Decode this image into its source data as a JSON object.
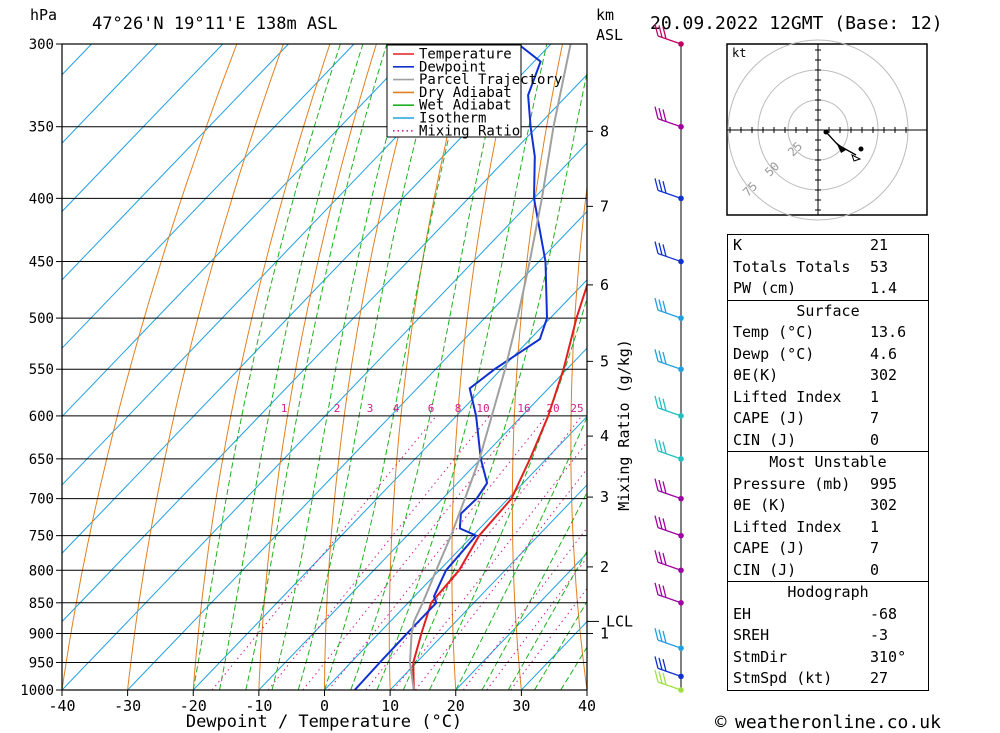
{
  "header": {
    "pressure_unit": "hPa",
    "location": "47°26'N  19°11'E  138m  ASL",
    "km_label": "km",
    "asl_label": "ASL",
    "datetime": "20.09.2022  12GMT  (Base: 12)"
  },
  "chart_data": {
    "type": "line",
    "title": "",
    "xlabel": "Dewpoint / Temperature (°C)",
    "ylabel": "hPa",
    "y2label": "Mixing Ratio (g/kg)",
    "xlim": [
      -40,
      40
    ],
    "ylim": [
      1000,
      300
    ],
    "x_ticks": [
      -40,
      -30,
      -20,
      -10,
      0,
      10,
      20,
      30,
      40
    ],
    "pressure_levels": [
      300,
      350,
      400,
      450,
      500,
      550,
      600,
      650,
      700,
      750,
      800,
      850,
      900,
      950,
      1000
    ],
    "height_km_labels": [
      {
        "p": 353,
        "km": "8"
      },
      {
        "p": 406,
        "km": "7"
      },
      {
        "p": 470,
        "km": "6"
      },
      {
        "p": 542,
        "km": "5"
      },
      {
        "p": 623,
        "km": "4"
      },
      {
        "p": 698,
        "km": "3"
      },
      {
        "p": 795,
        "km": "2"
      },
      {
        "p": 900,
        "km": "1"
      }
    ],
    "lcl": {
      "p": 880,
      "label": "LCL"
    },
    "mixing_ratio_labels": [
      "1",
      "2",
      "3",
      "4",
      "6",
      "8",
      "10",
      "16",
      "20",
      "25"
    ],
    "legend": {
      "placement": "top-center",
      "items": [
        {
          "name": "Temperature",
          "color": "#e02020",
          "style": "solid"
        },
        {
          "name": "Dewpoint",
          "color": "#1030d0",
          "style": "solid"
        },
        {
          "name": "Parcel Trajectory",
          "color": "#a0a0a0",
          "style": "solid"
        },
        {
          "name": "Dry Adiabat",
          "color": "#e08020",
          "style": "solid"
        },
        {
          "name": "Wet Adiabat",
          "color": "#20b020",
          "style": "solid"
        },
        {
          "name": "Isotherm",
          "color": "#20a0e0",
          "style": "solid"
        },
        {
          "name": "Mixing Ratio",
          "color": "#d02090",
          "style": "dotted"
        }
      ]
    },
    "series": [
      {
        "name": "Temperature",
        "points": [
          [
            1000,
            13.6
          ],
          [
            950,
            9.5
          ],
          [
            900,
            6.5
          ],
          [
            850,
            3.5
          ],
          [
            800,
            3.0
          ],
          [
            750,
            1.0
          ],
          [
            700,
            0.5
          ],
          [
            650,
            -2.5
          ],
          [
            600,
            -6.0
          ],
          [
            550,
            -10.5
          ],
          [
            500,
            -16.0
          ],
          [
            450,
            -21.5
          ],
          [
            400,
            -28.0
          ],
          [
            350,
            -35.5
          ],
          [
            320,
            -41.5
          ],
          [
            300,
            -43.5
          ]
        ]
      },
      {
        "name": "Dewpoint",
        "points": [
          [
            1000,
            4.6
          ],
          [
            950,
            4.4
          ],
          [
            900,
            4.3
          ],
          [
            850,
            4.3
          ],
          [
            840,
            3.0
          ],
          [
            800,
            1.0
          ],
          [
            750,
            0.5
          ],
          [
            740,
            -3.0
          ],
          [
            720,
            -5.0
          ],
          [
            700,
            -4.8
          ],
          [
            680,
            -5.5
          ],
          [
            650,
            -10.0
          ],
          [
            600,
            -17.0
          ],
          [
            570,
            -22.0
          ],
          [
            550,
            -21.0
          ],
          [
            520,
            -18.5
          ],
          [
            500,
            -20.5
          ],
          [
            450,
            -29.0
          ],
          [
            400,
            -40.0
          ],
          [
            370,
            -46.0
          ],
          [
            350,
            -51.0
          ],
          [
            330,
            -56.0
          ],
          [
            310,
            -59.0
          ],
          [
            300,
            -65.0
          ]
        ]
      },
      {
        "name": "Parcel Trajectory",
        "points": [
          [
            1000,
            13.6
          ],
          [
            950,
            9.0
          ],
          [
            900,
            5.0
          ],
          [
            880,
            3.6
          ],
          [
            850,
            2.2
          ],
          [
            800,
            -0.5
          ],
          [
            750,
            -3.3
          ],
          [
            700,
            -6.6
          ],
          [
            650,
            -10.2
          ],
          [
            600,
            -14.6
          ],
          [
            550,
            -19.4
          ],
          [
            500,
            -25.0
          ],
          [
            450,
            -31.4
          ],
          [
            400,
            -38.8
          ],
          [
            350,
            -47.5
          ],
          [
            300,
            -57.0
          ]
        ]
      }
    ]
  },
  "wind_profile": [
    {
      "p": 1000,
      "color": "#a0e040"
    },
    {
      "p": 975,
      "color": "#1030d0"
    },
    {
      "p": 925,
      "color": "#20a0e0"
    },
    {
      "p": 850,
      "color": "#a000a0"
    },
    {
      "p": 800,
      "color": "#a000a0"
    },
    {
      "p": 750,
      "color": "#a000a0"
    },
    {
      "p": 700,
      "color": "#a000a0"
    },
    {
      "p": 650,
      "color": "#20c0c0"
    },
    {
      "p": 600,
      "color": "#20c0c0"
    },
    {
      "p": 550,
      "color": "#20a0e0"
    },
    {
      "p": 500,
      "color": "#20a0e0"
    },
    {
      "p": 450,
      "color": "#1030d0"
    },
    {
      "p": 400,
      "color": "#1030d0"
    },
    {
      "p": 350,
      "color": "#a000a0"
    },
    {
      "p": 300,
      "color": "#c00060"
    }
  ],
  "hodograph": {
    "unit": "kt",
    "ring_labels": [
      "25",
      "50",
      "75"
    ]
  },
  "indices": [
    {
      "label": "K",
      "value": "21"
    },
    {
      "label": "Totals Totals",
      "value": "53"
    },
    {
      "label": "PW (cm)",
      "value": "1.4"
    }
  ],
  "surface": {
    "title": "Surface",
    "rows": [
      {
        "label": "Temp (°C)",
        "value": "13.6"
      },
      {
        "label": "Dewp (°C)",
        "value": "4.6"
      },
      {
        "label": "θE(K)",
        "value": "302"
      },
      {
        "label": "Lifted Index",
        "value": "1"
      },
      {
        "label": "CAPE (J)",
        "value": "7"
      },
      {
        "label": "CIN (J)",
        "value": "0"
      }
    ]
  },
  "most_unstable": {
    "title": "Most Unstable",
    "rows": [
      {
        "label": "Pressure (mb)",
        "value": "995"
      },
      {
        "label": "θE (K)",
        "value": "302"
      },
      {
        "label": "Lifted Index",
        "value": "1"
      },
      {
        "label": "CAPE (J)",
        "value": "7"
      },
      {
        "label": "CIN (J)",
        "value": "0"
      }
    ]
  },
  "hodograph_table": {
    "title": "Hodograph",
    "rows": [
      {
        "label": "EH",
        "value": "-68"
      },
      {
        "label": "SREH",
        "value": "-3"
      },
      {
        "label": "StmDir",
        "value": "310°"
      },
      {
        "label": "StmSpd (kt)",
        "value": "27"
      }
    ]
  },
  "footer": {
    "copyright_symbol": "©",
    "site": "weatheronline.co.uk"
  }
}
